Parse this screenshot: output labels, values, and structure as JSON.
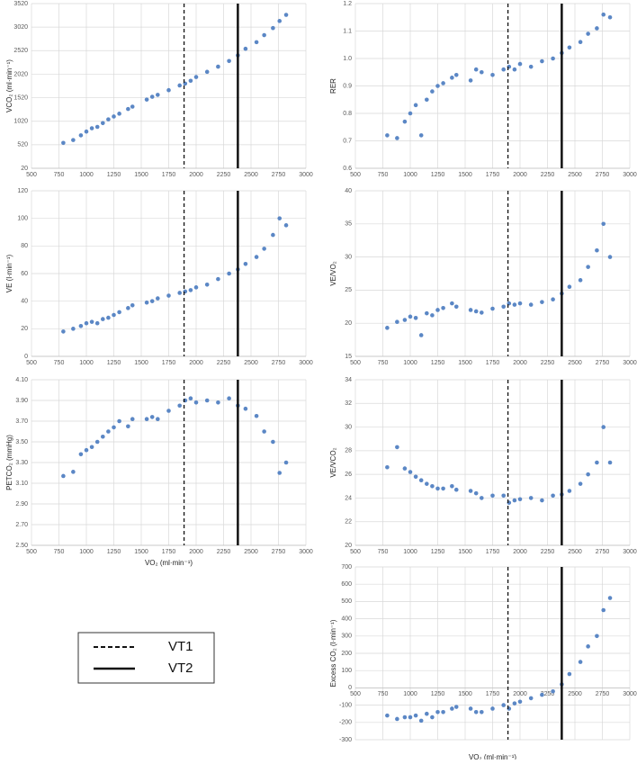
{
  "chart_data": [
    {
      "type": "scatter",
      "ylabel": "VCO₂ (ml·min⁻¹)",
      "color": "#5b87c5",
      "grid": true,
      "xlim": [
        500,
        3000
      ],
      "xticks": [
        500,
        750,
        1000,
        1250,
        1500,
        1750,
        2000,
        2250,
        2500,
        2750,
        3000
      ],
      "ylim": [
        20,
        3520
      ],
      "yticks": [
        20,
        520,
        1020,
        1520,
        2020,
        2520,
        3020,
        3520
      ],
      "x": [
        790,
        880,
        950,
        1000,
        1050,
        1100,
        1150,
        1200,
        1250,
        1300,
        1380,
        1420,
        1550,
        1600,
        1650,
        1750,
        1850,
        1900,
        1950,
        2000,
        2100,
        2200,
        2300,
        2380,
        2450,
        2550,
        2620,
        2700,
        2760,
        2820
      ],
      "values": [
        560,
        620,
        720,
        800,
        870,
        900,
        980,
        1060,
        1120,
        1180,
        1280,
        1330,
        1480,
        1540,
        1580,
        1680,
        1780,
        1820,
        1880,
        1960,
        2070,
        2180,
        2300,
        2420,
        2560,
        2700,
        2850,
        3000,
        3150,
        3280
      ]
    },
    {
      "type": "scatter",
      "ylabel": "VE (l·min⁻¹)",
      "color": "#5b87c5",
      "grid": true,
      "xlim": [
        500,
        3000
      ],
      "xticks": [
        500,
        750,
        1000,
        1250,
        1500,
        1750,
        2000,
        2250,
        2500,
        2750,
        3000
      ],
      "ylim": [
        0,
        120
      ],
      "yticks": [
        0,
        20,
        40,
        60,
        80,
        100,
        120
      ],
      "x": [
        790,
        880,
        950,
        1000,
        1050,
        1100,
        1150,
        1200,
        1250,
        1300,
        1380,
        1420,
        1550,
        1600,
        1650,
        1750,
        1850,
        1900,
        1950,
        2000,
        2100,
        2200,
        2300,
        2380,
        2450,
        2550,
        2620,
        2700,
        2760,
        2820
      ],
      "values": [
        18,
        20,
        22,
        24,
        25,
        24,
        27,
        28,
        30,
        32,
        35,
        37,
        39,
        40,
        42,
        44,
        46,
        47,
        48,
        50,
        52,
        56,
        60,
        63,
        67,
        72,
        78,
        88,
        100,
        95
      ]
    },
    {
      "type": "scatter",
      "ylabel": "PETCO₂ (mmHg)",
      "xlabel": "VO₂ (ml·min⁻¹)",
      "color": "#5b87c5",
      "grid": true,
      "xlim": [
        500,
        3000
      ],
      "xticks": [
        500,
        750,
        1000,
        1250,
        1500,
        1750,
        2000,
        2250,
        2500,
        2750,
        3000
      ],
      "ylim": [
        2.5,
        4.1
      ],
      "yticks": [
        {
          "value": 2.5,
          "label": "2.50"
        },
        {
          "value": 2.7,
          "label": "2.70"
        },
        {
          "value": 2.9,
          "label": "2.90"
        },
        {
          "value": 3.1,
          "label": "3.10"
        },
        {
          "value": 3.3,
          "label": "3.30"
        },
        {
          "value": 3.5,
          "label": "3.50"
        },
        {
          "value": 3.7,
          "label": "3.70"
        },
        {
          "value": 3.9,
          "label": "3.90"
        },
        {
          "value": 4.1,
          "label": "4.10"
        }
      ],
      "x": [
        790,
        880,
        950,
        1000,
        1050,
        1100,
        1150,
        1200,
        1250,
        1300,
        1380,
        1420,
        1550,
        1600,
        1650,
        1750,
        1850,
        1900,
        1950,
        2000,
        2100,
        2200,
        2300,
        2380,
        2450,
        2550,
        2620,
        2700,
        2760,
        2820
      ],
      "values": [
        3.17,
        3.21,
        3.38,
        3.42,
        3.45,
        3.5,
        3.55,
        3.6,
        3.64,
        3.7,
        3.65,
        3.72,
        3.72,
        3.74,
        3.72,
        3.8,
        3.85,
        3.9,
        3.92,
        3.88,
        3.9,
        3.88,
        3.92,
        3.85,
        3.82,
        3.75,
        3.6,
        3.5,
        3.2,
        3.3
      ]
    },
    {
      "type": "scatter",
      "ylabel": "RER",
      "color": "#5b87c5",
      "grid": true,
      "xlim": [
        500,
        3000
      ],
      "xticks": [
        500,
        750,
        1000,
        1250,
        1500,
        1750,
        2000,
        2250,
        2500,
        2750,
        3000
      ],
      "ylim": [
        0.6,
        1.2
      ],
      "yticks": [
        0.6,
        0.7,
        0.8,
        0.9,
        {
          "value": 1,
          "label": "1.0"
        },
        1.1,
        1.2
      ],
      "x": [
        790,
        880,
        950,
        1000,
        1050,
        1100,
        1150,
        1200,
        1250,
        1300,
        1380,
        1420,
        1550,
        1600,
        1650,
        1750,
        1850,
        1900,
        1950,
        2000,
        2100,
        2200,
        2300,
        2380,
        2450,
        2550,
        2620,
        2700,
        2760,
        2820
      ],
      "values": [
        0.72,
        0.71,
        0.77,
        0.8,
        0.83,
        0.72,
        0.85,
        0.88,
        0.9,
        0.91,
        0.93,
        0.94,
        0.92,
        0.96,
        0.95,
        0.94,
        0.96,
        0.97,
        0.96,
        0.98,
        0.97,
        0.99,
        1.0,
        1.02,
        1.04,
        1.06,
        1.09,
        1.11,
        1.16,
        1.15
      ]
    },
    {
      "type": "scatter",
      "ylabel": "VE/VO₂",
      "color": "#5b87c5",
      "grid": true,
      "xlim": [
        500,
        3000
      ],
      "xticks": [
        500,
        750,
        1000,
        1250,
        1500,
        1750,
        2000,
        2250,
        2500,
        2750,
        3000
      ],
      "ylim": [
        15,
        40
      ],
      "yticks": [
        15,
        20,
        25,
        30,
        35,
        40
      ],
      "x": [
        790,
        880,
        950,
        1000,
        1050,
        1100,
        1150,
        1200,
        1250,
        1300,
        1380,
        1420,
        1550,
        1600,
        1650,
        1750,
        1850,
        1900,
        1950,
        2000,
        2100,
        2200,
        2300,
        2380,
        2450,
        2550,
        2620,
        2700,
        2760,
        2820
      ],
      "values": [
        19.3,
        20.2,
        20.5,
        21,
        20.8,
        18.2,
        21.5,
        21.2,
        22,
        22.3,
        23,
        22.5,
        22,
        21.8,
        21.6,
        22.2,
        22.5,
        23,
        22.8,
        23,
        22.8,
        23.2,
        23.6,
        24.5,
        25.5,
        26.5,
        28.5,
        31,
        35,
        30
      ]
    },
    {
      "type": "scatter",
      "ylabel": "VE/VCO₂",
      "color": "#5b87c5",
      "grid": true,
      "xlim": [
        500,
        3000
      ],
      "xticks": [
        500,
        750,
        1000,
        1250,
        1500,
        1750,
        2000,
        2250,
        2500,
        2750,
        3000
      ],
      "ylim": [
        20,
        34
      ],
      "yticks": [
        20,
        22,
        24,
        26,
        28,
        30,
        32,
        34
      ],
      "x": [
        790,
        880,
        950,
        1000,
        1050,
        1100,
        1150,
        1200,
        1250,
        1300,
        1380,
        1420,
        1550,
        1600,
        1650,
        1750,
        1850,
        1900,
        1950,
        2000,
        2100,
        2200,
        2300,
        2380,
        2450,
        2550,
        2620,
        2700,
        2760,
        2820
      ],
      "values": [
        26.6,
        28.3,
        26.5,
        26.2,
        25.8,
        25.5,
        25.2,
        25,
        24.8,
        24.8,
        25,
        24.7,
        24.6,
        24.4,
        24,
        24.2,
        24.2,
        23.6,
        23.8,
        23.9,
        24,
        23.8,
        24.2,
        24.3,
        24.6,
        25.2,
        26,
        27,
        30,
        27
      ]
    },
    {
      "type": "scatter",
      "ylabel": "Excess CO₂ (l·min⁻¹)",
      "xlabel": "VO₂ (ml·min⁻¹)",
      "color": "#5b87c5",
      "grid": true,
      "x_axis_at": 0,
      "xlim": [
        500,
        3000
      ],
      "xticks": [
        500,
        750,
        1000,
        1250,
        1500,
        1750,
        2000,
        2250,
        2500,
        2750,
        3000
      ],
      "ylim": [
        -300,
        700
      ],
      "yticks": [
        -300,
        -200,
        -100,
        0,
        100,
        200,
        300,
        400,
        500,
        600,
        700
      ],
      "x": [
        790,
        880,
        950,
        1000,
        1050,
        1100,
        1150,
        1200,
        1250,
        1300,
        1380,
        1420,
        1550,
        1600,
        1650,
        1750,
        1850,
        1900,
        1950,
        2000,
        2100,
        2200,
        2300,
        2380,
        2450,
        2550,
        2620,
        2700,
        2760,
        2820
      ],
      "values": [
        -160,
        -180,
        -170,
        -170,
        -160,
        -190,
        -150,
        -170,
        -140,
        -140,
        -120,
        -110,
        -120,
        -140,
        -140,
        -120,
        -100,
        -120,
        -90,
        -80,
        -60,
        -40,
        -20,
        20,
        80,
        150,
        240,
        300,
        450,
        520
      ]
    }
  ],
  "thresholds": [
    {
      "name": "VT1",
      "value": 1890,
      "style": "dashed"
    },
    {
      "name": "VT2",
      "value": 2380,
      "style": "solid"
    }
  ]
}
